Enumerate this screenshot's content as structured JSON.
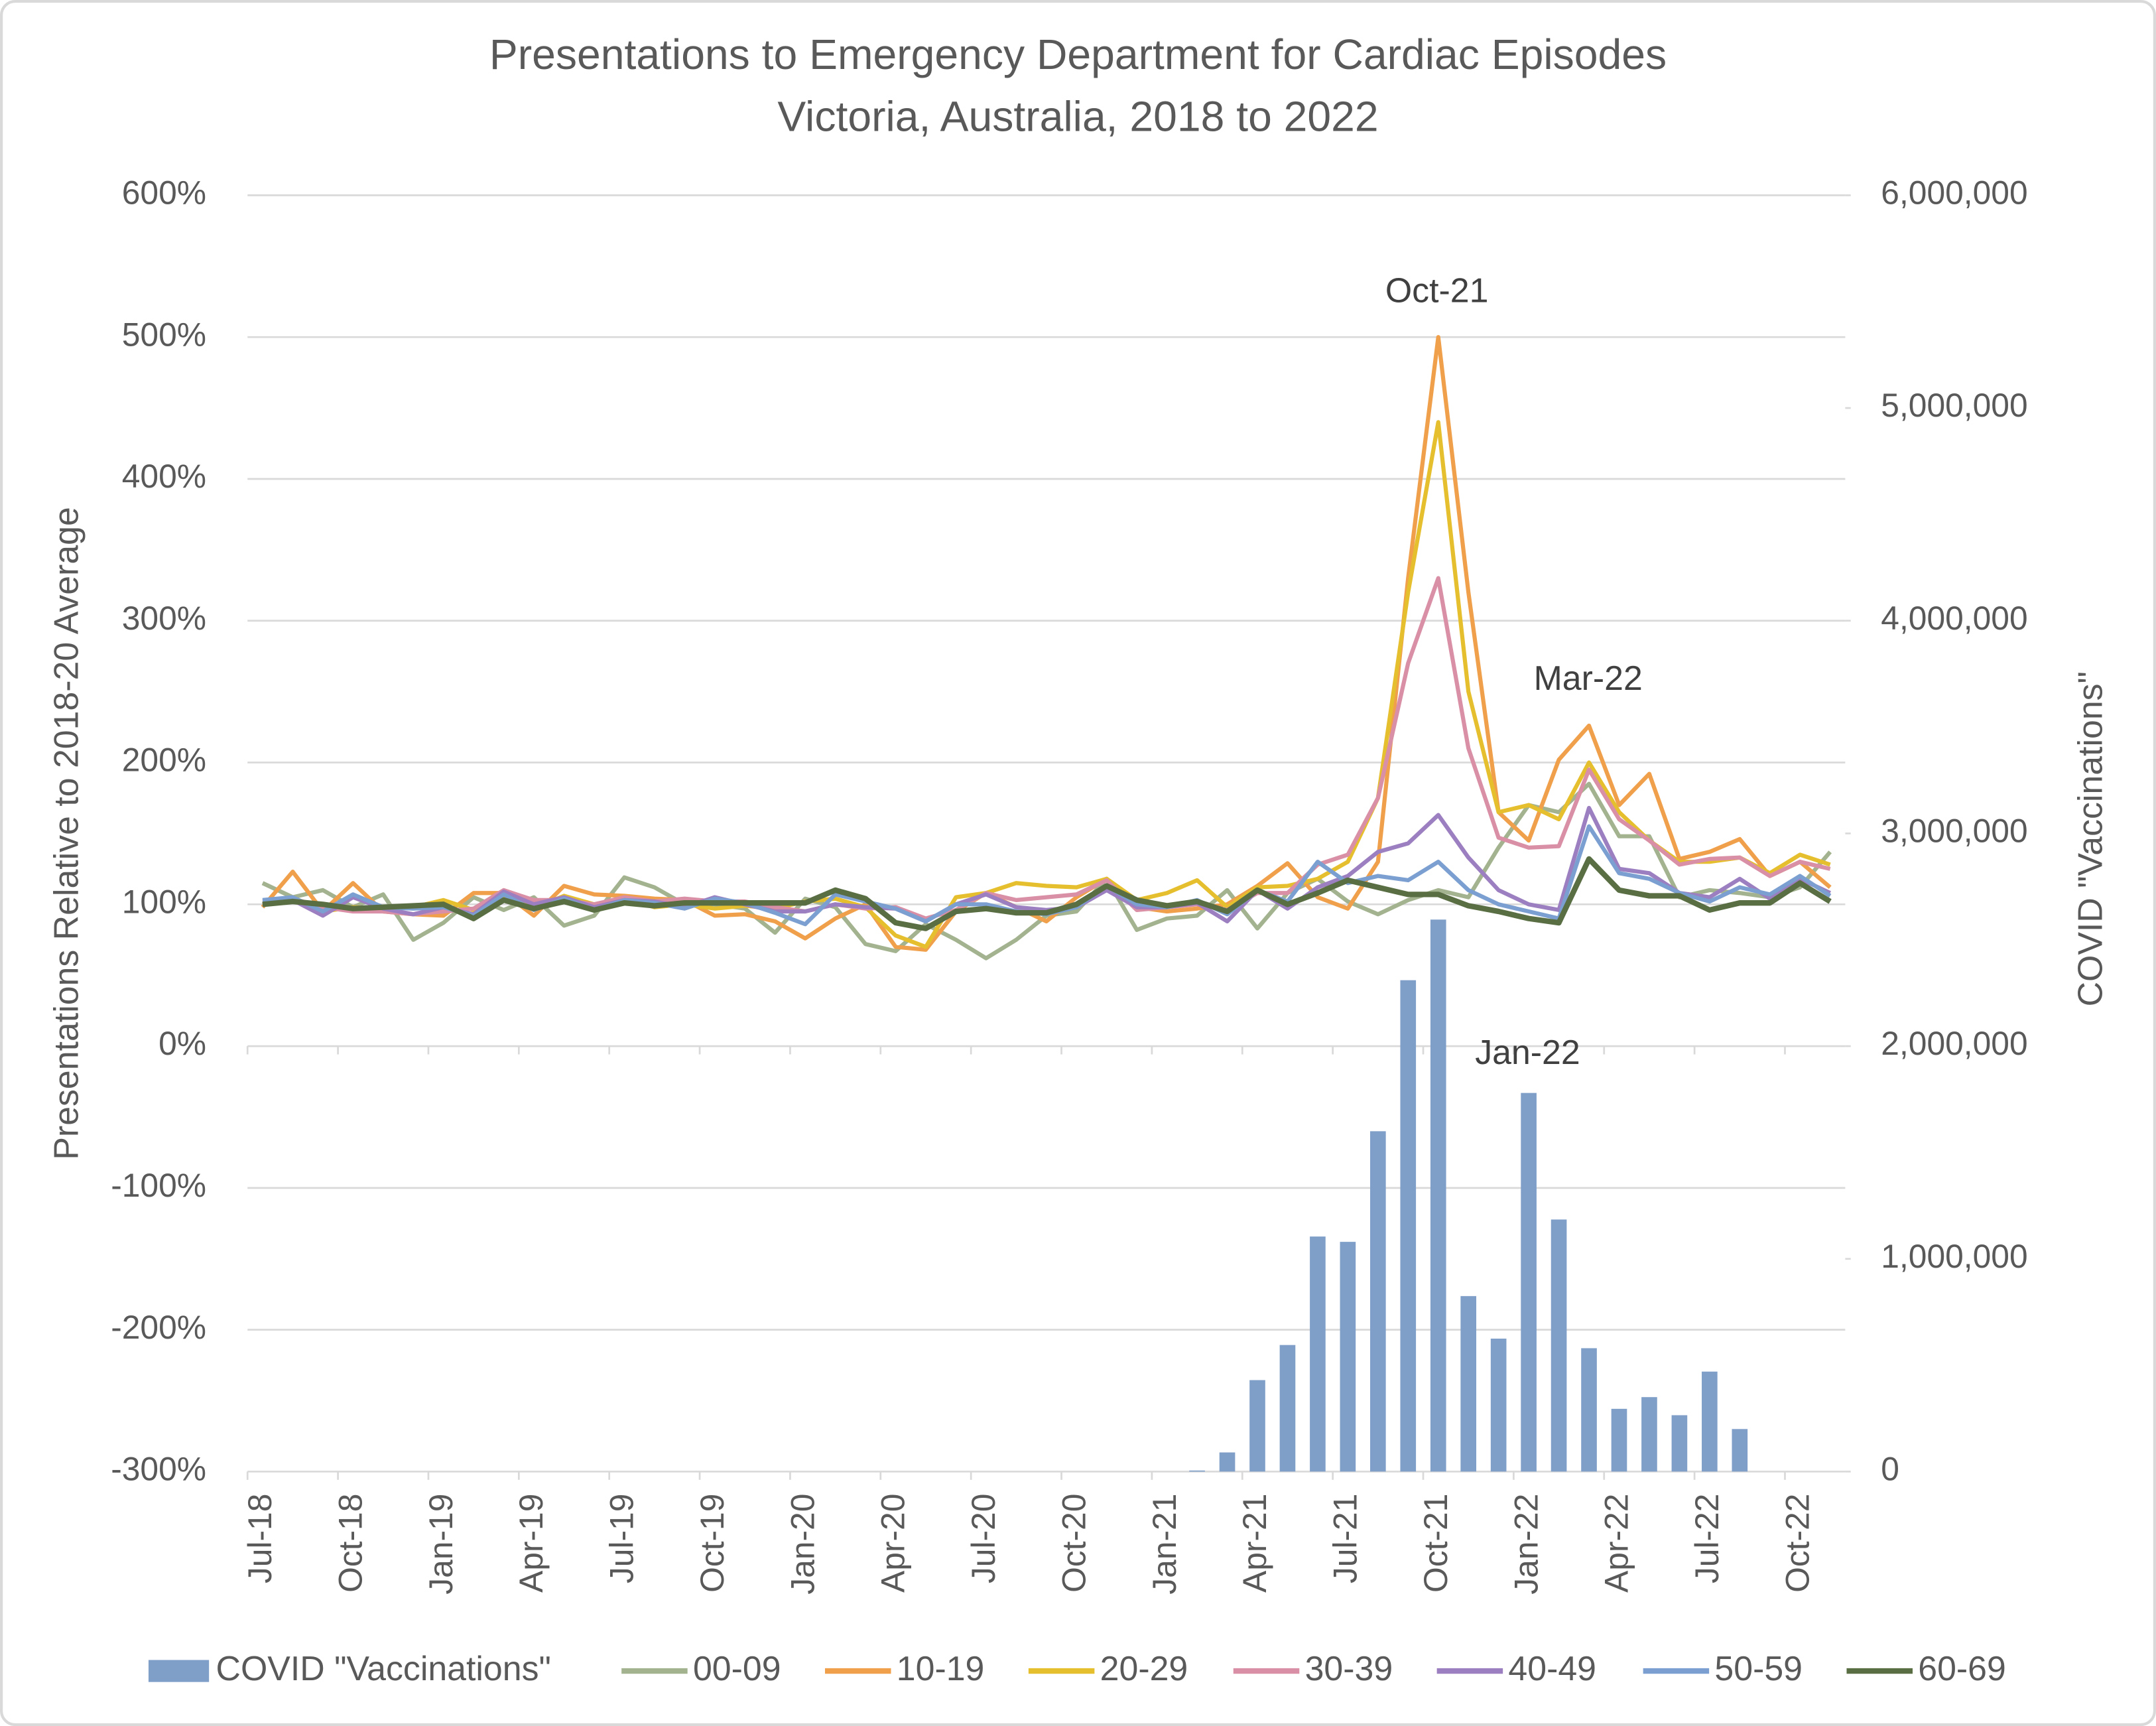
{
  "chart_data": {
    "type": "line",
    "title": "Presentations to Emergency Department for Cardiac Episodes",
    "subtitle": "Victoria, Australia, 2018 to 2022",
    "y_label": "Presentations Relative to 2018-20 Average",
    "y2_label": "COVID \"Vaccinations\"",
    "annotations": [
      "Oct-21",
      "Mar-22",
      "Jan-22"
    ],
    "categories": [
      "Jul-18",
      null,
      null,
      "Oct-18",
      null,
      null,
      "Jan-19",
      null,
      null,
      "Apr-19",
      null,
      null,
      "Jul-19",
      null,
      null,
      "Oct-19",
      null,
      null,
      "Jan-20",
      null,
      null,
      "Apr-20",
      null,
      null,
      "Jul-20",
      null,
      null,
      "Oct-20",
      null,
      null,
      "Jan-21",
      null,
      null,
      "Apr-21",
      null,
      null,
      "Jul-21",
      null,
      null,
      "Oct-21",
      null,
      null,
      "Jan-22",
      null,
      null,
      "Apr-22",
      null,
      null,
      "Jul-22",
      null,
      null,
      "Oct-22",
      null
    ],
    "ylim": [
      -300,
      600
    ],
    "yticks": [
      {
        "value": -300,
        "label": "-300%"
      },
      {
        "value": -200,
        "label": "-200%"
      },
      {
        "value": -100,
        "label": "-100%"
      },
      {
        "value": 0,
        "label": "0%"
      },
      {
        "value": 100,
        "label": "100%"
      },
      {
        "value": 200,
        "label": "200%"
      },
      {
        "value": 300,
        "label": "300%"
      },
      {
        "value": 400,
        "label": "400%"
      },
      {
        "value": 500,
        "label": "500%"
      },
      {
        "value": 600,
        "label": "600%"
      }
    ],
    "y2lim": [
      0,
      6000000
    ],
    "y2ticks": [
      0,
      {
        "value": 1000000,
        "label": "1,000,000"
      },
      {
        "value": 2000000,
        "label": "2,000,000"
      },
      {
        "value": 3000000,
        "label": "3,000,000"
      },
      {
        "value": 4000000,
        "label": "4,000,000"
      },
      {
        "value": 5000000,
        "label": "5,000,000"
      },
      {
        "value": 6000000,
        "label": "6,000,000"
      }
    ],
    "grid": true,
    "legend": "bottom",
    "series": [
      {
        "name": "COVID \"Vaccinations\"",
        "type": "bar",
        "axis": "y2",
        "color": "#7f9fc9",
        "values": [
          null,
          null,
          null,
          null,
          null,
          null,
          null,
          null,
          null,
          null,
          null,
          null,
          null,
          null,
          null,
          null,
          null,
          null,
          null,
          null,
          null,
          null,
          null,
          null,
          null,
          null,
          null,
          null,
          null,
          null,
          null,
          5000,
          90000,
          430000,
          595000,
          1105000,
          1080000,
          1600000,
          2310000,
          2595000,
          825000,
          625000,
          1780000,
          1185000,
          580000,
          295000,
          350000,
          265000,
          470000,
          200000,
          null,
          null,
          null
        ]
      },
      {
        "name": "00-09",
        "type": "line",
        "color": "#a3b38f",
        "values": [
          115,
          105,
          110,
          98,
          107,
          75,
          87,
          105,
          96,
          105,
          85,
          92,
          119,
          112,
          100,
          100,
          97,
          80,
          104,
          98,
          72,
          67,
          86,
          75,
          62,
          75,
          92,
          95,
          118,
          82,
          90,
          92,
          110,
          83,
          108,
          118,
          102,
          93,
          103,
          110,
          105,
          140,
          170,
          165,
          185,
          148,
          148,
          105,
          110,
          108,
          105,
          112,
          137
        ]
      },
      {
        "name": "10-19",
        "type": "line",
        "color": "#f0a04b",
        "values": [
          98,
          123,
          95,
          115,
          95,
          93,
          92,
          108,
          108,
          92,
          113,
          107,
          106,
          104,
          103,
          92,
          93,
          88,
          76,
          90,
          100,
          70,
          68,
          95,
          108,
          98,
          88,
          105,
          118,
          98,
          95,
          97,
          100,
          113,
          129,
          105,
          97,
          130,
          330,
          500,
          320,
          165,
          145,
          202,
          226,
          170,
          192,
          132,
          137,
          146,
          120,
          130,
          112
        ]
      },
      {
        "name": "20-29",
        "type": "line",
        "color": "#e6bf2e",
        "values": [
          100,
          105,
          95,
          98,
          97,
          98,
          103,
          96,
          106,
          97,
          106,
          100,
          104,
          98,
          100,
          97,
          99,
          97,
          102,
          104,
          98,
          78,
          70,
          105,
          108,
          115,
          113,
          112,
          118,
          103,
          108,
          117,
          98,
          112,
          113,
          118,
          130,
          175,
          320,
          440,
          250,
          165,
          170,
          160,
          200,
          165,
          145,
          130,
          130,
          133,
          122,
          135,
          128
        ]
      },
      {
        "name": "30-39",
        "type": "line",
        "color": "#d98fa5",
        "values": [
          102,
          104,
          98,
          95,
          95,
          93,
          95,
          97,
          110,
          103,
          103,
          100,
          105,
          102,
          104,
          102,
          102,
          98,
          95,
          100,
          97,
          98,
          90,
          96,
          108,
          103,
          105,
          107,
          117,
          96,
          98,
          100,
          96,
          108,
          108,
          128,
          135,
          175,
          270,
          330,
          210,
          147,
          140,
          141,
          195,
          160,
          145,
          128,
          132,
          133,
          120,
          130,
          125
        ]
      },
      {
        "name": "40-49",
        "type": "line",
        "color": "#9b7fc0",
        "values": [
          100,
          103,
          92,
          105,
          97,
          93,
          98,
          93,
          109,
          100,
          105,
          98,
          103,
          102,
          98,
          105,
          100,
          95,
          95,
          100,
          98,
          97,
          88,
          100,
          107,
          98,
          96,
          98,
          110,
          98,
          98,
          101,
          88,
          110,
          97,
          112,
          120,
          137,
          143,
          163,
          133,
          110,
          100,
          96,
          168,
          125,
          122,
          108,
          105,
          118,
          104,
          118,
          108
        ]
      },
      {
        "name": "50-59",
        "type": "line",
        "color": "#7b9fd0",
        "values": [
          103,
          105,
          95,
          107,
          98,
          97,
          98,
          92,
          107,
          96,
          104,
          96,
          103,
          101,
          97,
          104,
          101,
          94,
          86,
          107,
          102,
          97,
          88,
          100,
          100,
          95,
          93,
          98,
          113,
          100,
          98,
          103,
          93,
          110,
          102,
          130,
          115,
          120,
          117,
          130,
          110,
          100,
          95,
          90,
          155,
          122,
          118,
          108,
          102,
          112,
          107,
          120,
          106
        ]
      },
      {
        "name": "60-69",
        "type": "line",
        "color": "#5a6e44",
        "values": [
          100,
          102,
          100,
          97,
          98,
          99,
          100,
          90,
          103,
          97,
          102,
          96,
          101,
          99,
          101,
          101,
          101,
          101,
          101,
          110,
          104,
          87,
          83,
          95,
          97,
          94,
          94,
          100,
          113,
          103,
          99,
          102,
          95,
          110,
          100,
          108,
          117,
          112,
          107,
          107,
          99,
          95,
          90,
          87,
          132,
          110,
          106,
          106,
          96,
          101,
          101,
          115,
          102
        ]
      }
    ]
  }
}
